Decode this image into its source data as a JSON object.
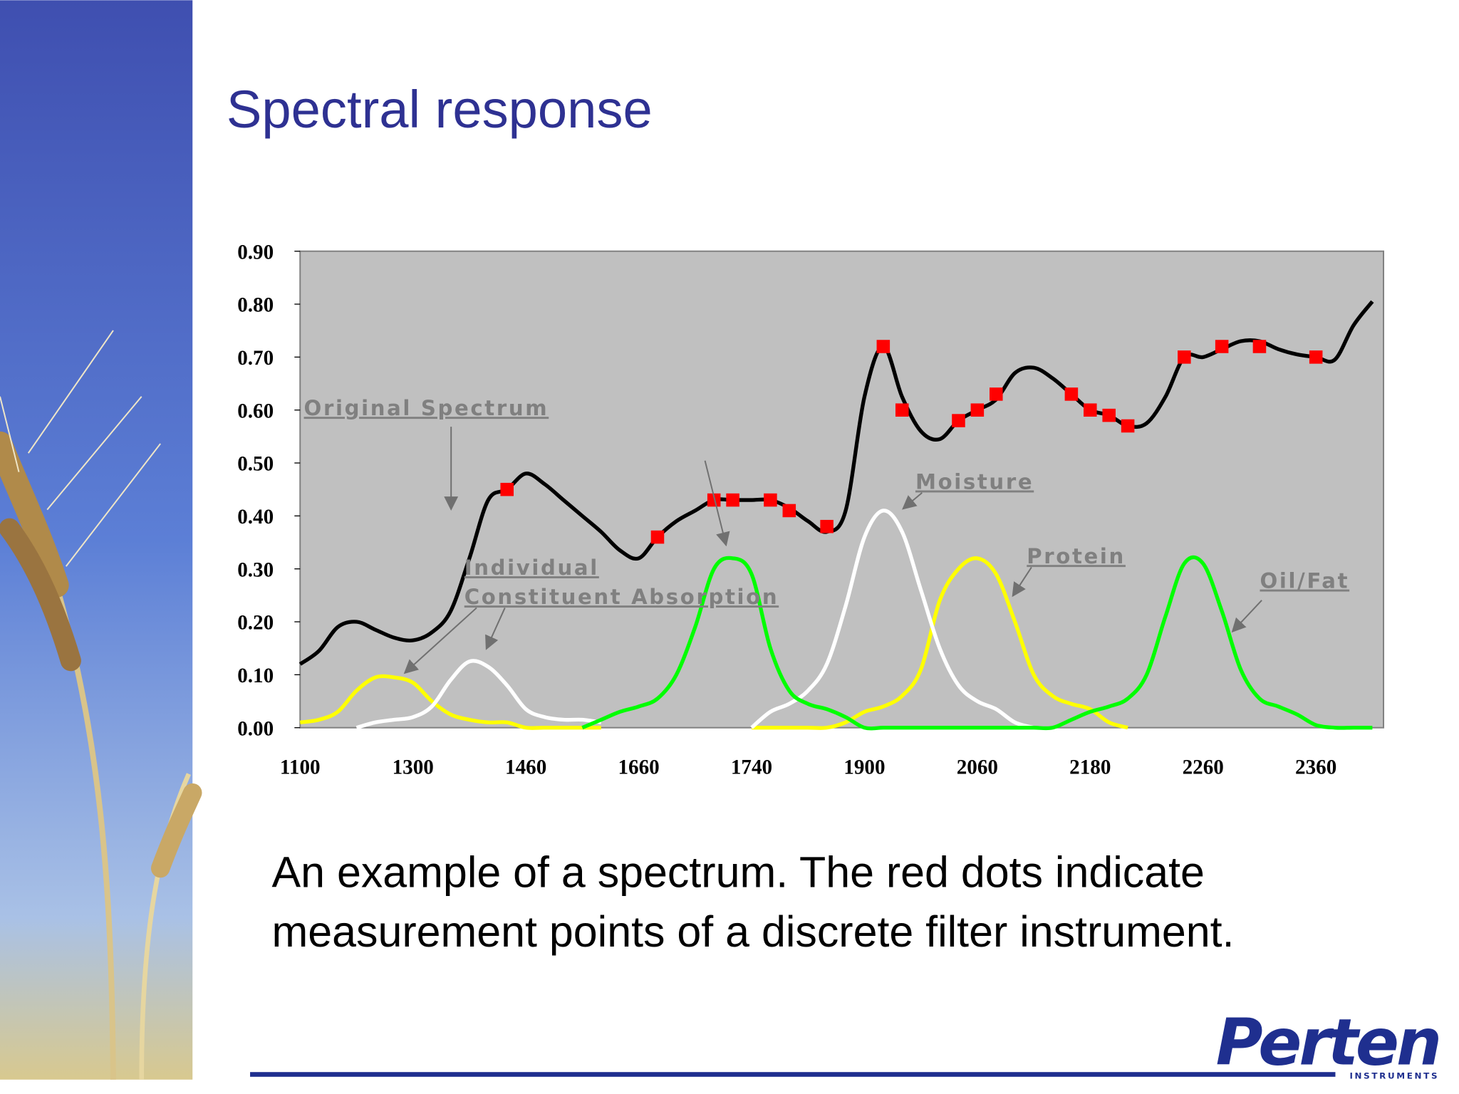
{
  "title": "Spectral response",
  "caption": [
    "An example of a spectrum. The red dots indicate",
    "measurement points of a discrete filter instrument."
  ],
  "logo": {
    "name": "Perten",
    "sub": "INSTRUMENTS"
  },
  "chart_data": {
    "type": "line",
    "categories": [
      "1100",
      null,
      null,
      null,
      null,
      null,
      "1300",
      null,
      null,
      null,
      null,
      null,
      "1460",
      null,
      null,
      null,
      null,
      null,
      "1660",
      null,
      null,
      null,
      null,
      null,
      "1740",
      null,
      null,
      null,
      null,
      null,
      "1900",
      null,
      null,
      null,
      null,
      null,
      "2060",
      null,
      null,
      null,
      null,
      null,
      "2180",
      null,
      null,
      null,
      null,
      null,
      "2260",
      null,
      null,
      null,
      null,
      null,
      "2360",
      null,
      null,
      null
    ],
    "ylim": [
      0,
      0.9
    ],
    "yticks": [
      {
        "value": 0,
        "label": "0.00"
      },
      {
        "value": 0.1,
        "label": "0.10"
      },
      {
        "value": 0.2,
        "label": "0.20"
      },
      {
        "value": 0.3,
        "label": "0.30"
      },
      {
        "value": 0.4,
        "label": "0.40"
      },
      {
        "value": 0.5,
        "label": "0.50"
      },
      {
        "value": 0.6,
        "label": "0.60"
      },
      {
        "value": 0.7,
        "label": "0.70"
      },
      {
        "value": 0.8,
        "label": "0.80"
      },
      {
        "value": 0.9,
        "label": "0.90"
      }
    ],
    "grid": false,
    "annotations": [
      "Original Spectrum",
      "Individual",
      "Constituent Absorption",
      "Moisture",
      "Protein",
      "Oil/Fat"
    ],
    "series": [
      {
        "color": "#000000",
        "mode": "line",
        "values": [
          0.12,
          0.145,
          0.19,
          0.2,
          0.185,
          0.17,
          0.165,
          0.18,
          0.22,
          0.32,
          0.43,
          0.45,
          0.48,
          0.46,
          0.43,
          0.4,
          0.37,
          0.335,
          0.32,
          0.36,
          0.39,
          0.41,
          0.43,
          0.43,
          0.43,
          0.43,
          0.415,
          0.39,
          0.37,
          0.41,
          0.625,
          0.72,
          0.625,
          0.56,
          0.545,
          0.58,
          0.6,
          0.62,
          0.67,
          0.68,
          0.66,
          0.63,
          0.6,
          0.59,
          0.57,
          0.575,
          0.625,
          0.7,
          0.7,
          0.715,
          0.73,
          0.73,
          0.715,
          0.705,
          0.7,
          0.695,
          0.76,
          0.805
        ]
      },
      {
        "color": "#ffff00",
        "mode": "line",
        "values": [
          0.01,
          0.015,
          0.03,
          0.07,
          0.095,
          0.095,
          0.085,
          0.05,
          0.025,
          0.015,
          0.01,
          0.01,
          0,
          0,
          0,
          0,
          0,
          null,
          null,
          null,
          null,
          null,
          null,
          null,
          0,
          0,
          0,
          0,
          0,
          0.01,
          0.03,
          0.04,
          0.06,
          0.11,
          0.24,
          0.3,
          0.32,
          0.29,
          0.2,
          0.1,
          0.06,
          0.045,
          0.035,
          0.01,
          0,
          null,
          null,
          null,
          null,
          null,
          null,
          null,
          null,
          null,
          null,
          null,
          null,
          null
        ]
      },
      {
        "color": "#ffffff",
        "mode": "line",
        "values": [
          null,
          null,
          null,
          0,
          0.01,
          0.015,
          0.02,
          0.04,
          0.09,
          0.125,
          0.115,
          0.08,
          0.035,
          0.02,
          0.015,
          0.015,
          0.01,
          null,
          null,
          null,
          null,
          null,
          null,
          null,
          0,
          0.03,
          0.045,
          0.07,
          0.12,
          0.23,
          0.36,
          0.41,
          0.37,
          0.26,
          0.15,
          0.08,
          0.05,
          0.035,
          0.01,
          0,
          null,
          null,
          null,
          null,
          null,
          null,
          null,
          null,
          null,
          null,
          null,
          null,
          null,
          null,
          null,
          null,
          null,
          null
        ]
      },
      {
        "color": "#00ff00",
        "mode": "line",
        "values": [
          null,
          null,
          null,
          null,
          null,
          null,
          null,
          null,
          null,
          null,
          null,
          null,
          null,
          null,
          null,
          0,
          0.015,
          0.03,
          0.04,
          0.055,
          0.1,
          0.19,
          0.3,
          0.32,
          0.29,
          0.15,
          0.07,
          0.045,
          0.035,
          0.02,
          0,
          0,
          0,
          0,
          0,
          0,
          0,
          0,
          0,
          0,
          0,
          0.015,
          0.03,
          0.04,
          0.055,
          0.1,
          0.21,
          0.31,
          0.31,
          0.22,
          0.11,
          0.055,
          0.04,
          0.025,
          0.005,
          0,
          0,
          0
        ]
      },
      {
        "color": "#ff0000",
        "mode": "markers",
        "values": [
          null,
          null,
          null,
          null,
          null,
          null,
          null,
          null,
          null,
          null,
          null,
          0.45,
          null,
          null,
          null,
          null,
          null,
          null,
          null,
          0.36,
          null,
          null,
          0.43,
          0.43,
          null,
          0.43,
          0.41,
          null,
          0.38,
          null,
          null,
          0.72,
          0.6,
          null,
          null,
          0.58,
          0.6,
          0.63,
          null,
          null,
          null,
          0.63,
          0.6,
          0.59,
          0.57,
          null,
          null,
          0.7,
          null,
          0.72,
          null,
          0.72,
          null,
          null,
          0.7,
          null,
          null,
          null
        ]
      }
    ]
  }
}
